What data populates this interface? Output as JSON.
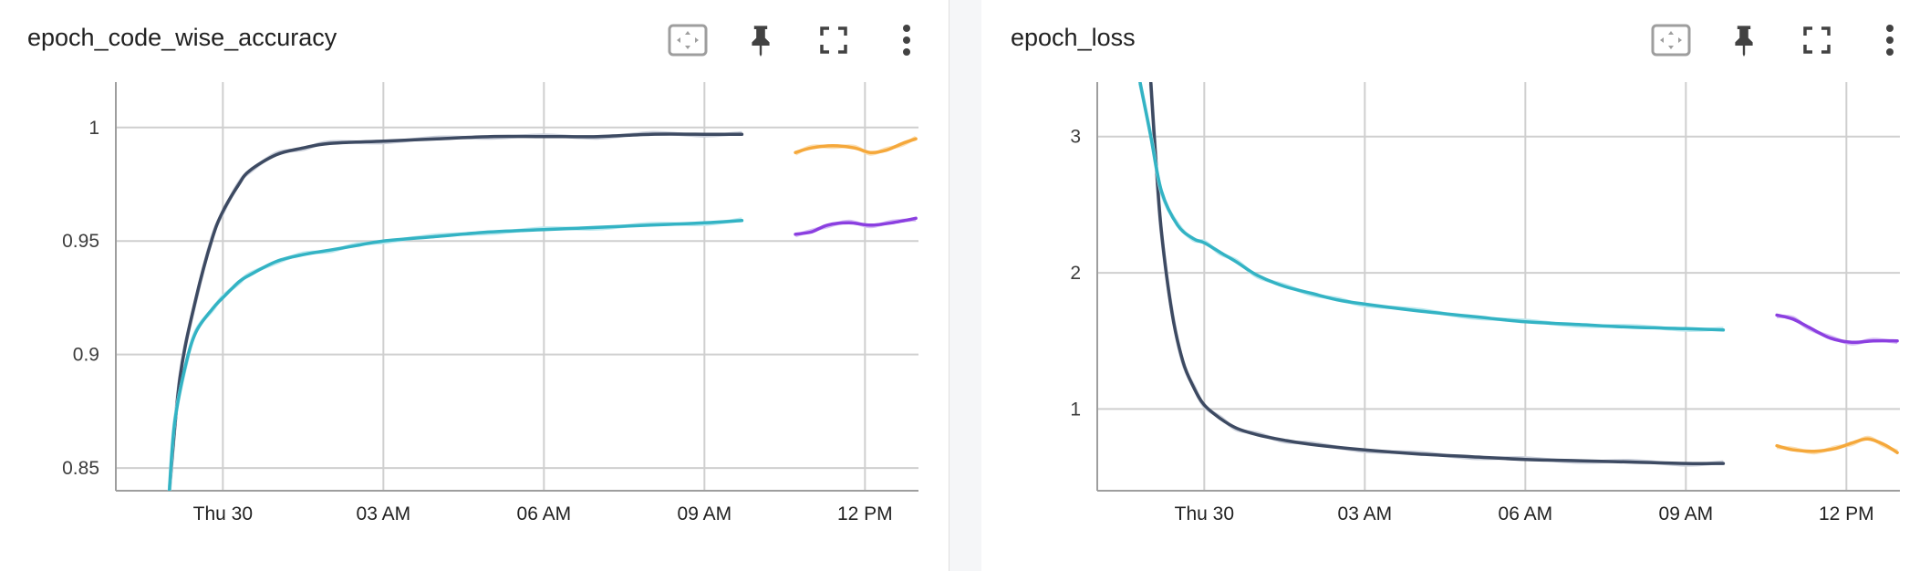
{
  "colors": {
    "navy": "#3d4a62",
    "navy_raw": "#cbd0db",
    "teal": "#33b3c4",
    "teal_raw": "#bde9ef",
    "orange": "#f5a83b",
    "orange_raw": "#fbe0b6",
    "purple": "#8b3fe0",
    "purple_raw": "#d7bff5",
    "grid": "#cfcfcf"
  },
  "toolbar_icons": [
    "fit-domain-icon",
    "pin-icon",
    "fullscreen-icon",
    "more-vert-icon"
  ],
  "chart_data": [
    {
      "type": "line",
      "title": "epoch_code_wise_accuracy",
      "x_type": "time",
      "x_tick_labels": [
        "Thu 30",
        "03 AM",
        "06 AM",
        "09 AM",
        "12 PM"
      ],
      "x_ticks_hours": [
        0,
        3,
        6,
        9,
        12
      ],
      "xlim_hours": [
        -2,
        13
      ],
      "ylim": [
        0.84,
        1.02
      ],
      "y_tick_values": [
        0.85,
        0.9,
        0.95,
        1
      ],
      "y_tick_labels": [
        "0.85",
        "0.9",
        "0.95",
        "1"
      ],
      "grid": true,
      "legend": "none",
      "series": [
        {
          "color_key": "navy",
          "raw_color_key": "navy_raw",
          "points": [
            [
              -1.0,
              0.84
            ],
            [
              -0.8,
              0.89
            ],
            [
              -0.5,
              0.925
            ],
            [
              -0.2,
              0.951
            ],
            [
              0.0,
              0.963
            ],
            [
              0.3,
              0.975
            ],
            [
              0.5,
              0.981
            ],
            [
              1.0,
              0.988
            ],
            [
              1.5,
              0.991
            ],
            [
              2.0,
              0.993
            ],
            [
              3.0,
              0.994
            ],
            [
              4.0,
              0.995
            ],
            [
              5.0,
              0.996
            ],
            [
              6.0,
              0.996
            ],
            [
              7.0,
              0.996
            ],
            [
              8.0,
              0.997
            ],
            [
              9.0,
              0.997
            ],
            [
              9.7,
              0.997
            ]
          ]
        },
        {
          "color_key": "teal",
          "raw_color_key": "teal_raw",
          "points": [
            [
              -1.0,
              0.84
            ],
            [
              -0.9,
              0.87
            ],
            [
              -0.7,
              0.895
            ],
            [
              -0.5,
              0.91
            ],
            [
              -0.2,
              0.92
            ],
            [
              0.0,
              0.925
            ],
            [
              0.3,
              0.932
            ],
            [
              0.5,
              0.935
            ],
            [
              1.0,
              0.941
            ],
            [
              1.5,
              0.944
            ],
            [
              2.0,
              0.946
            ],
            [
              2.5,
              0.948
            ],
            [
              3.0,
              0.95
            ],
            [
              4.0,
              0.952
            ],
            [
              5.0,
              0.954
            ],
            [
              6.0,
              0.955
            ],
            [
              7.0,
              0.956
            ],
            [
              8.0,
              0.957
            ],
            [
              9.0,
              0.958
            ],
            [
              9.7,
              0.959
            ]
          ]
        },
        {
          "color_key": "orange",
          "raw_color_key": "orange_raw",
          "points": [
            [
              10.7,
              0.989
            ],
            [
              11.0,
              0.991
            ],
            [
              11.4,
              0.992
            ],
            [
              11.8,
              0.991
            ],
            [
              12.1,
              0.989
            ],
            [
              12.4,
              0.99
            ],
            [
              12.7,
              0.993
            ],
            [
              12.95,
              0.995
            ]
          ]
        },
        {
          "color_key": "purple",
          "raw_color_key": "purple_raw",
          "points": [
            [
              10.7,
              0.953
            ],
            [
              11.0,
              0.954
            ],
            [
              11.3,
              0.957
            ],
            [
              11.7,
              0.958
            ],
            [
              12.1,
              0.957
            ],
            [
              12.5,
              0.958
            ],
            [
              12.95,
              0.96
            ]
          ]
        }
      ]
    },
    {
      "type": "line",
      "title": "epoch_loss",
      "x_type": "time",
      "x_tick_labels": [
        "Thu 30",
        "03 AM",
        "06 AM",
        "09 AM",
        "12 PM"
      ],
      "x_ticks_hours": [
        0,
        3,
        6,
        9,
        12
      ],
      "xlim_hours": [
        -2,
        13
      ],
      "ylim": [
        0.4,
        3.4
      ],
      "y_tick_values": [
        1,
        2,
        3
      ],
      "y_tick_labels": [
        "1",
        "2",
        "3"
      ],
      "grid": true,
      "legend": "none",
      "series": [
        {
          "color_key": "navy",
          "raw_color_key": "navy_raw",
          "points": [
            [
              -1.0,
              3.4
            ],
            [
              -0.9,
              2.8
            ],
            [
              -0.8,
              2.3
            ],
            [
              -0.6,
              1.7
            ],
            [
              -0.4,
              1.35
            ],
            [
              -0.2,
              1.16
            ],
            [
              0.0,
              1.03
            ],
            [
              0.3,
              0.93
            ],
            [
              0.6,
              0.86
            ],
            [
              1.0,
              0.81
            ],
            [
              1.5,
              0.77
            ],
            [
              2.0,
              0.74
            ],
            [
              3.0,
              0.7
            ],
            [
              4.0,
              0.67
            ],
            [
              5.0,
              0.65
            ],
            [
              6.0,
              0.63
            ],
            [
              7.0,
              0.62
            ],
            [
              8.0,
              0.61
            ],
            [
              9.0,
              0.6
            ],
            [
              9.7,
              0.6
            ]
          ]
        },
        {
          "color_key": "teal",
          "raw_color_key": "teal_raw",
          "points": [
            [
              -1.2,
              3.4
            ],
            [
              -1.0,
              3.0
            ],
            [
              -0.8,
              2.6
            ],
            [
              -0.5,
              2.35
            ],
            [
              -0.2,
              2.25
            ],
            [
              0.0,
              2.22
            ],
            [
              0.3,
              2.15
            ],
            [
              0.6,
              2.08
            ],
            [
              1.0,
              1.98
            ],
            [
              1.5,
              1.9
            ],
            [
              2.0,
              1.85
            ],
            [
              2.5,
              1.8
            ],
            [
              3.0,
              1.77
            ],
            [
              4.0,
              1.72
            ],
            [
              5.0,
              1.68
            ],
            [
              6.0,
              1.64
            ],
            [
              7.0,
              1.62
            ],
            [
              8.0,
              1.6
            ],
            [
              9.0,
              1.59
            ],
            [
              9.7,
              1.58
            ]
          ]
        },
        {
          "color_key": "orange",
          "raw_color_key": "orange_raw",
          "points": [
            [
              10.7,
              0.73
            ],
            [
              11.0,
              0.7
            ],
            [
              11.4,
              0.69
            ],
            [
              11.8,
              0.71
            ],
            [
              12.1,
              0.75
            ],
            [
              12.4,
              0.78
            ],
            [
              12.7,
              0.74
            ],
            [
              12.95,
              0.68
            ]
          ]
        },
        {
          "color_key": "purple",
          "raw_color_key": "purple_raw",
          "points": [
            [
              10.7,
              1.69
            ],
            [
              11.0,
              1.66
            ],
            [
              11.3,
              1.6
            ],
            [
              11.7,
              1.52
            ],
            [
              12.1,
              1.49
            ],
            [
              12.5,
              1.5
            ],
            [
              12.95,
              1.5
            ]
          ]
        }
      ]
    }
  ]
}
